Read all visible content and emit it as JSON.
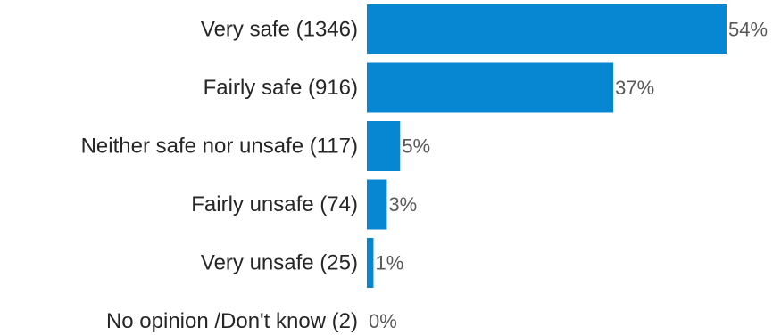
{
  "chart_data": {
    "type": "bar",
    "orientation": "horizontal",
    "categories": [
      "Very safe (1346)",
      "Fairly safe (916)",
      "Neither safe nor unsafe (117)",
      "Fairly unsafe (74)",
      "Very unsafe (25)",
      "No opinion /Don't know (2)"
    ],
    "values": [
      54,
      37,
      5,
      3,
      1,
      0
    ],
    "value_labels": [
      "54%",
      "37%",
      "5%",
      "3%",
      "1%",
      "0%"
    ],
    "unit": "%",
    "title": "",
    "xlabel": "",
    "ylabel": "",
    "xlim": [
      0,
      54
    ],
    "grid": false,
    "legend": "none",
    "bar_color": "#0787d1",
    "category_label_color": "#262626",
    "value_label_color": "#595959"
  }
}
